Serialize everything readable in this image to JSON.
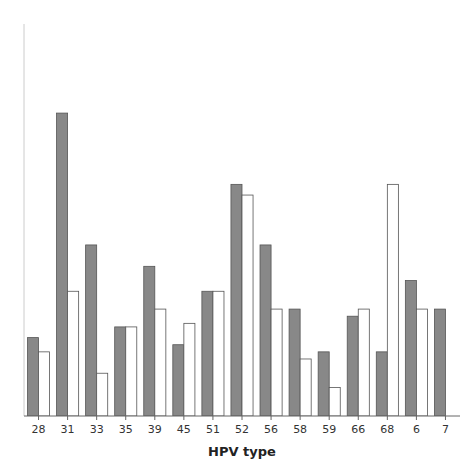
{
  "chart_data": {
    "type": "bar",
    "xlabel": "HPV type",
    "categories": [
      "28",
      "31",
      "33",
      "35",
      "39",
      "45",
      "51",
      "52",
      "56",
      "58",
      "59",
      "66",
      "68",
      "6",
      "7"
    ],
    "series": [
      {
        "color": "#888888",
        "values": [
          2.2,
          8.5,
          4.8,
          2.5,
          4.2,
          2.0,
          3.5,
          6.5,
          4.8,
          3.0,
          1.8,
          2.8,
          1.8,
          3.8,
          3.0
        ]
      },
      {
        "color": "#ffffff",
        "values": [
          1.8,
          3.5,
          1.2,
          2.5,
          3.0,
          2.6,
          3.5,
          6.2,
          3.0,
          1.6,
          0.8,
          3.0,
          6.5,
          3.0,
          0.0
        ]
      }
    ],
    "ylim": [
      0,
      11
    ],
    "tick_labels": "x",
    "grid": false
  }
}
